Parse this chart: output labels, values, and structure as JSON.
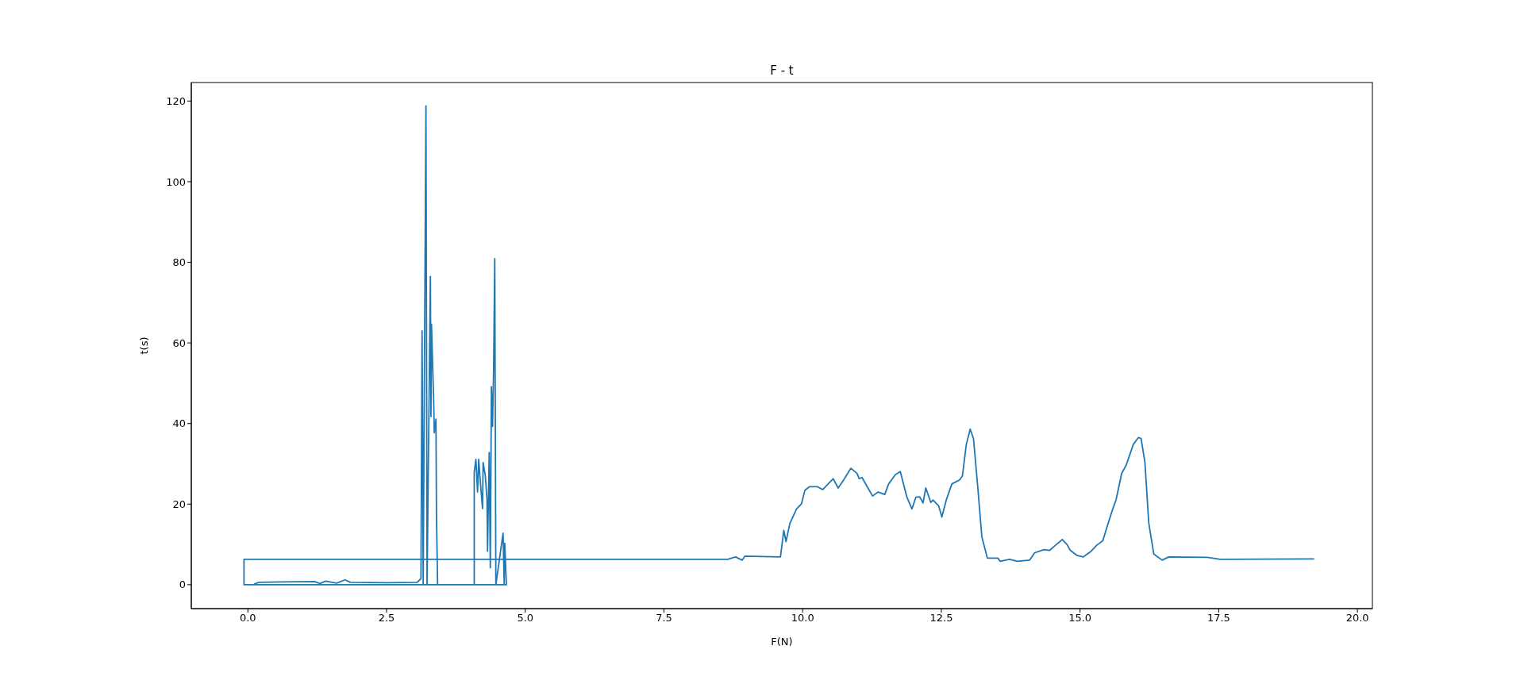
{
  "chart_data": {
    "type": "line",
    "title": "F - t",
    "xlabel": "F(N)",
    "ylabel": "t(s)",
    "xlim": [
      -1.02,
      20.27
    ],
    "ylim": [
      -5.93,
      124.6
    ],
    "xticks": [
      {
        "value": 0,
        "label": "0.0"
      },
      {
        "value": 2.5,
        "label": "2.5"
      },
      {
        "value": 5,
        "label": "5.0"
      },
      {
        "value": 7.5,
        "label": "7.5"
      },
      {
        "value": 10,
        "label": "10.0"
      },
      {
        "value": 12.5,
        "label": "12.5"
      },
      {
        "value": 15,
        "label": "15.0"
      },
      {
        "value": 17.5,
        "label": "17.5"
      },
      {
        "value": 20,
        "label": "20.0"
      }
    ],
    "yticks": [
      0,
      20,
      40,
      60,
      80,
      100,
      120
    ],
    "grid": false,
    "marker": "none",
    "line_style": "solid",
    "series": [
      {
        "color": "#1f77b4",
        "x": [
          0.12,
          0.2,
          0.6,
          1.2,
          1.3,
          1.4,
          1.6,
          1.75,
          1.85,
          2.5,
          3.05,
          3.12,
          3.14,
          3.16,
          3.21,
          3.23,
          3.29,
          3.3,
          3.31,
          3.35,
          3.36,
          3.39,
          3.4,
          3.42,
          4.08,
          4.08,
          4.11,
          4.14,
          4.16,
          4.2,
          4.23,
          4.24,
          4.28,
          4.31,
          4.32,
          4.35,
          4.37,
          4.39,
          4.41,
          4.43,
          4.45,
          4.47,
          4.6,
          4.62,
          4.63,
          4.66,
          -0.07,
          -0.07,
          8.65,
          8.79,
          8.91,
          8.96,
          9.6,
          9.66,
          9.7,
          9.77,
          9.89,
          9.98,
          10.04,
          10.12,
          10.27,
          10.36,
          10.48,
          10.55,
          10.64,
          10.74,
          10.87,
          10.98,
          11.02,
          11.07,
          11.26,
          11.36,
          11.48,
          11.55,
          11.67,
          11.76,
          11.88,
          11.97,
          12.04,
          12.11,
          12.17,
          12.22,
          12.31,
          12.35,
          12.45,
          12.51,
          12.59,
          12.69,
          12.83,
          12.88,
          12.95,
          13.02,
          13.08,
          13.16,
          13.23,
          13.33,
          13.52,
          13.56,
          13.73,
          13.87,
          14.09,
          14.18,
          14.35,
          14.45,
          14.54,
          14.68,
          14.77,
          14.82,
          14.94,
          15.06,
          15.2,
          15.3,
          15.41,
          15.49,
          15.58,
          15.65,
          15.75,
          15.83,
          15.96,
          16.05,
          16.1,
          16.17,
          16.24,
          16.33,
          16.48,
          16.6,
          17.29,
          17.53,
          19.21
        ],
        "values": [
          0.2,
          0.6,
          0.7,
          0.8,
          0.3,
          0.9,
          0.4,
          1.2,
          0.6,
          0.5,
          0.6,
          1.5,
          63,
          0,
          118.8,
          0,
          76.5,
          41.7,
          64.6,
          45.1,
          37.7,
          41.1,
          16.8,
          0,
          0,
          27.9,
          31.1,
          23,
          31.1,
          23.8,
          18.9,
          30.3,
          27,
          21.3,
          8.3,
          32.8,
          4.2,
          49.1,
          39.3,
          54,
          80.9,
          0,
          12.8,
          0,
          10.3,
          0,
          0,
          6.3,
          6.3,
          6.9,
          6.1,
          7.1,
          6.9,
          13.5,
          10.7,
          15.2,
          18.8,
          20.1,
          23.4,
          24.3,
          24.3,
          23.6,
          25.3,
          26.3,
          24,
          26,
          28.9,
          27.6,
          26.3,
          26.6,
          22,
          23,
          22.4,
          25,
          27.3,
          28.1,
          21.7,
          18.8,
          21.7,
          21.8,
          20.3,
          24,
          20.4,
          21,
          19.6,
          16.8,
          21.1,
          25,
          26,
          27,
          34.8,
          38.6,
          36.2,
          23.7,
          11.9,
          6.6,
          6.6,
          5.8,
          6.3,
          5.8,
          6.1,
          7.9,
          8.7,
          8.5,
          9.6,
          11.2,
          9.9,
          8.6,
          7.3,
          6.9,
          8.3,
          9.8,
          10.9,
          14.5,
          18.4,
          21.1,
          27.6,
          29.6,
          34.8,
          36.5,
          36.3,
          30.3,
          15.2,
          7.6,
          6.1,
          6.9,
          6.8,
          6.3,
          6.4
        ]
      }
    ]
  }
}
